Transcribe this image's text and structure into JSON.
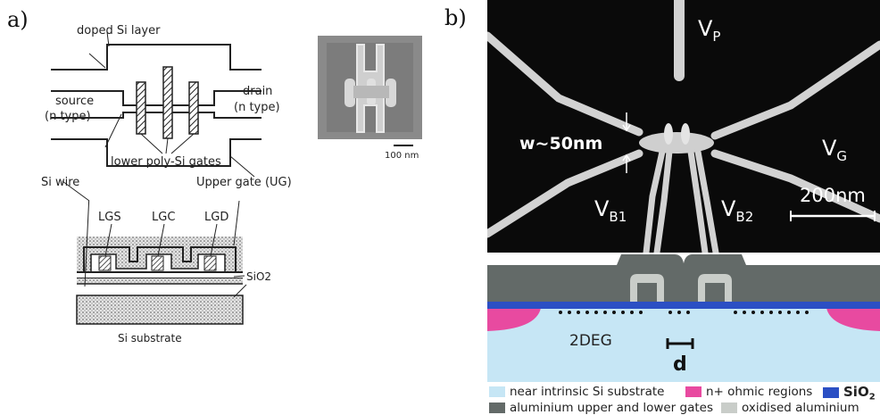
{
  "panels": {
    "a": "a)",
    "b": "b)"
  },
  "top_schematic": {
    "doped_layer": "doped Si layer",
    "source": [
      "source",
      "(n type)"
    ],
    "drain": [
      "drain",
      "(n type)"
    ],
    "lower_gates": "lower poly-Si gates",
    "si_wire": "Si wire",
    "upper_gate": "Upper gate (UG)"
  },
  "sem_small": {
    "scale": "100 nm"
  },
  "cross_section_a": {
    "gates": [
      "LGS",
      "LGC",
      "LGD"
    ],
    "oxide": "SiO2",
    "substrate": "Si substrate"
  },
  "sem_large": {
    "vp": "V",
    "vp_sub": "P",
    "vg": "V",
    "vg_sub": "G",
    "vb1": "V",
    "vb1_sub": "B1",
    "vb2": "V",
    "vb2_sub": "B2",
    "width": "w~50nm",
    "scale": "200nm"
  },
  "cross_section_b": {
    "twodeg": "2DEG",
    "d": "d"
  },
  "legend": {
    "substrate": "near intrinsic Si substrate",
    "ohmic": "n+ ohmic regions",
    "sio2": "SiO",
    "sio2_sub": "2",
    "gates": "aluminium upper and lower gates",
    "oxidised": "oxidised aluminium"
  },
  "colors": {
    "substrate": "#c6e6f5",
    "ohmic": "#e84aa0",
    "sio2": "#2b4fc4",
    "aluminium": "#636a68",
    "oxidised": "#c9cdc9"
  }
}
